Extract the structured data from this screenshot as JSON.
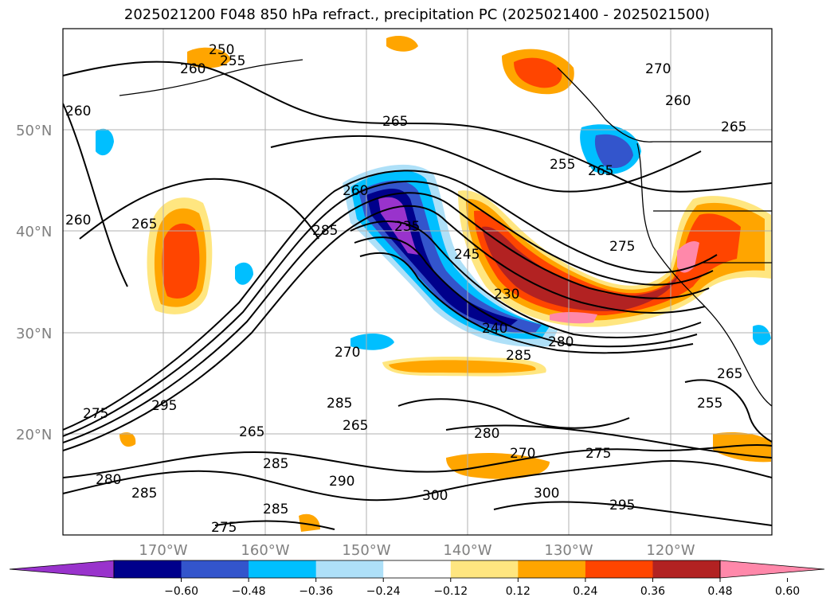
{
  "title": "2025021200 F048 850 hPa refract., precipitation PC (2025021400 - 2025021500)",
  "map": {
    "lat_ticks": [
      "50°N",
      "40°N",
      "30°N",
      "20°N"
    ],
    "lon_ticks": [
      "170°W",
      "160°W",
      "150°W",
      "140°W",
      "130°W",
      "120°W"
    ],
    "contour_labels": [
      "250",
      "255",
      "260",
      "265",
      "270",
      "275",
      "280",
      "285",
      "290",
      "295",
      "300",
      "245",
      "240",
      "235",
      "230"
    ]
  },
  "colorbar": {
    "ticks": [
      "−0.60",
      "−0.48",
      "−0.36",
      "−0.24",
      "−0.12",
      "0.12",
      "0.24",
      "0.36",
      "0.48",
      "0.60"
    ],
    "colors": [
      "#9933cc",
      "#00008b",
      "#3355cc",
      "#00bfff",
      "#aee0f8",
      "#ffffff",
      "#ffe680",
      "#ffa500",
      "#ff4500",
      "#b22222",
      "#ff88aa"
    ]
  }
}
